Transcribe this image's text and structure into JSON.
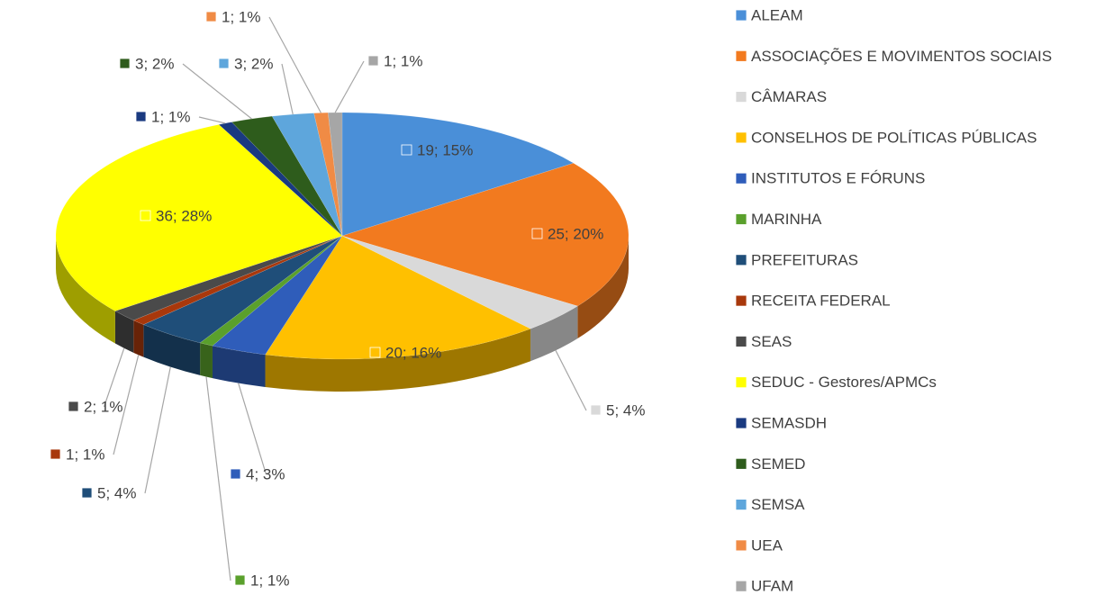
{
  "chart_data": {
    "type": "pie",
    "categories": [
      "ALEAM",
      "ASSOCIAÇÕES E MOVIMENTOS SOCIAIS",
      "CÂMARAS",
      "CONSELHOS DE POLÍTICAS PÚBLICAS",
      "INSTITUTOS E FÓRUNS",
      "MARINHA",
      "PREFEITURAS",
      "RECEITA FEDERAL",
      "SEAS",
      "SEDUC - Gestores/APMCs",
      "SEMASDH",
      "SEMED",
      "SEMSA",
      "UEA",
      "UFAM"
    ],
    "values": [
      19,
      25,
      5,
      20,
      4,
      1,
      5,
      1,
      2,
      36,
      1,
      3,
      3,
      1,
      1
    ],
    "value_labels": [
      "19; 15%",
      "25; 20%",
      "5; 4%",
      "20; 16%",
      "4; 3%",
      "1; 1%",
      "5; 4%",
      "1; 1%",
      "2; 1%",
      "36; 28%",
      "1; 1%",
      "3; 2%",
      "3; 2%",
      "1; 1%",
      "1; 1%"
    ],
    "colors": [
      "#4a8fd8",
      "#f27a1f",
      "#d9d9d9",
      "#ffc000",
      "#2f5dba",
      "#5aa02c",
      "#1f4e79",
      "#a8380c",
      "#4a4a4a",
      "#ffff00",
      "#1a3a80",
      "#2e5c1c",
      "#5ea6dc",
      "#f08b45",
      "#a6a6a6"
    ],
    "legend": "right"
  }
}
